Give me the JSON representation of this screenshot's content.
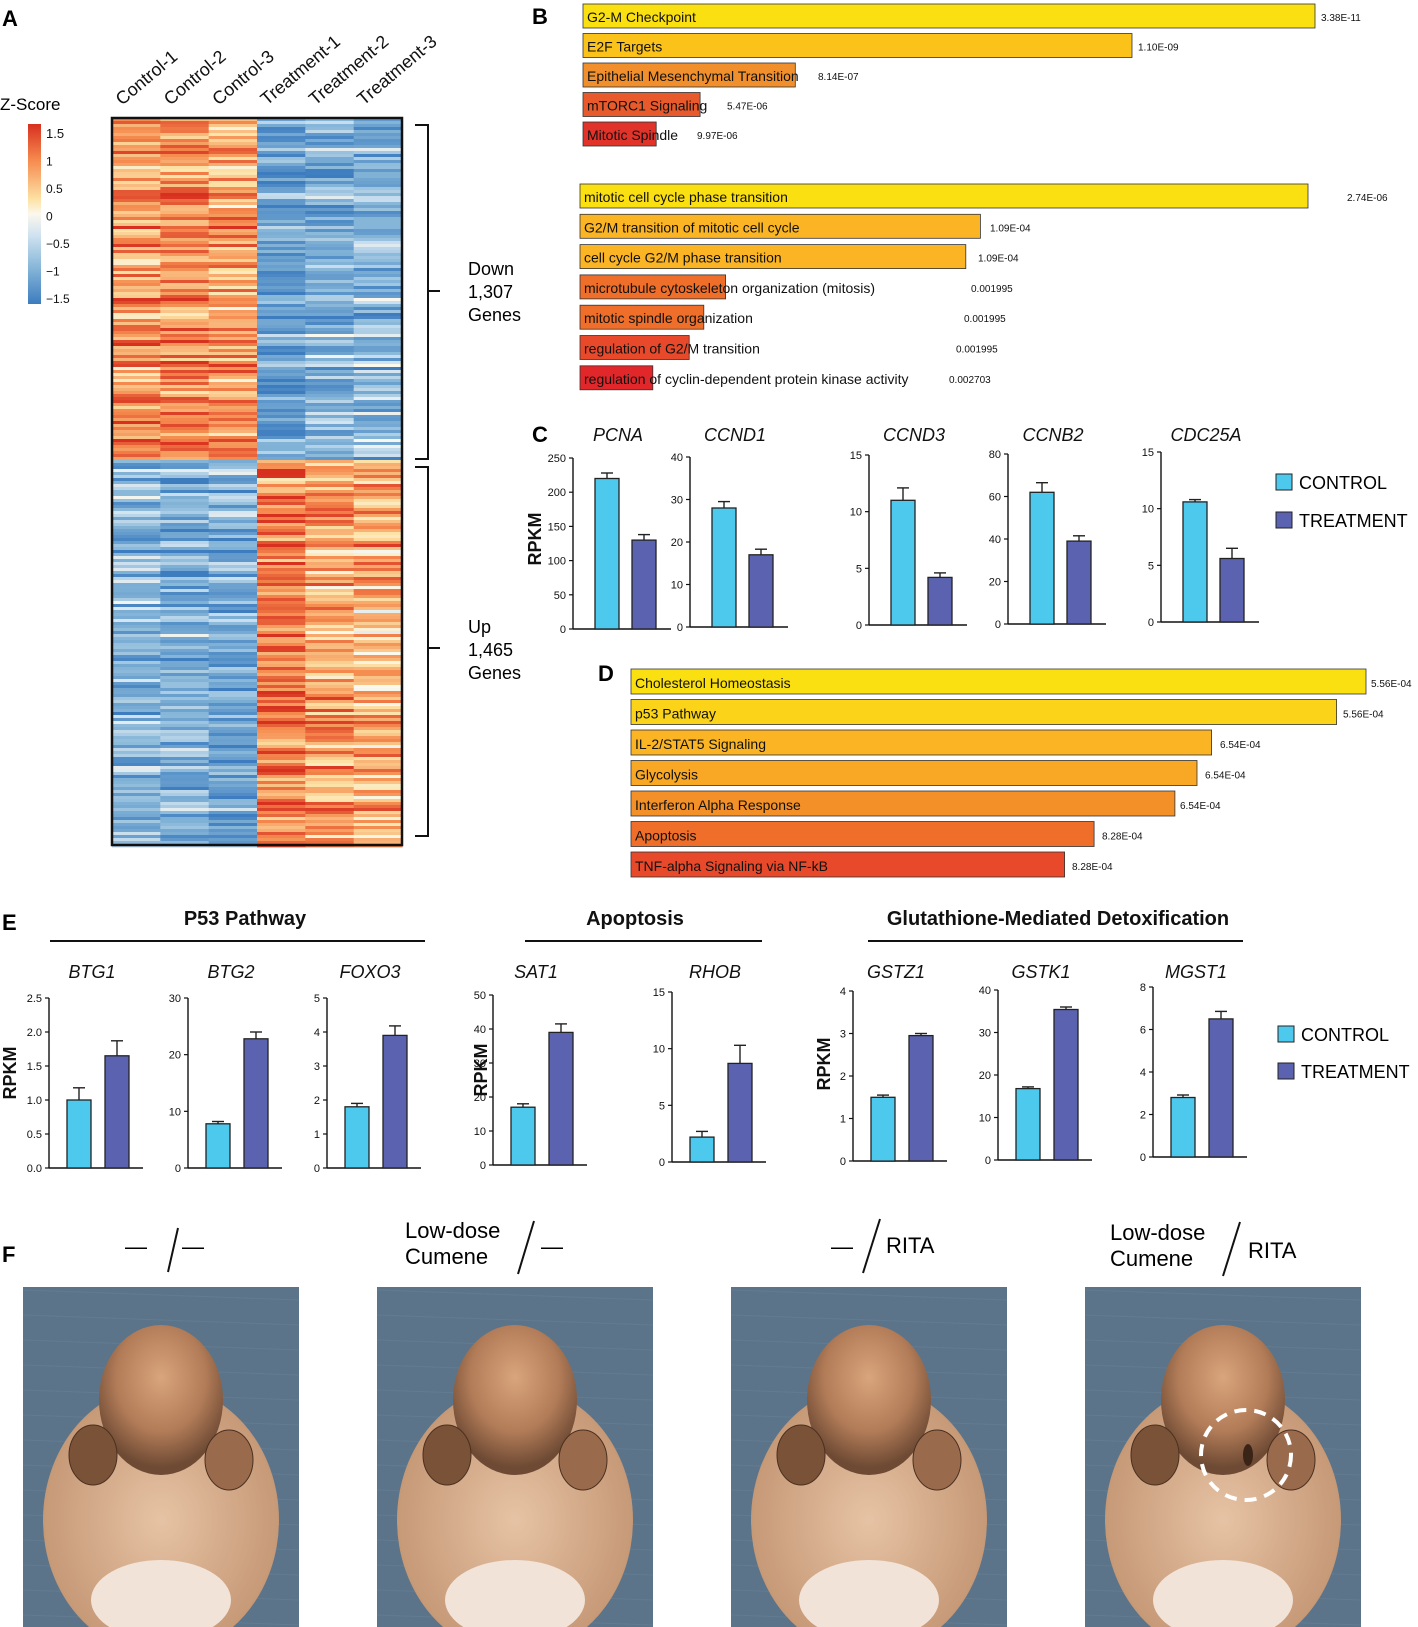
{
  "panel_labels": {
    "a": "A",
    "b": "B",
    "c": "C",
    "d": "D",
    "e": "E",
    "f": "F"
  },
  "colors": {
    "control": "#4dc9ee",
    "treatment": "#5b63b0",
    "bar_stroke": "#222222"
  },
  "heatmap": {
    "zscore_title": "Z-Score",
    "scale_ticks": [
      "1.5",
      "1",
      "0.5",
      "0",
      "−0.5",
      "−1",
      "−1.5"
    ],
    "columns": [
      "Control-1",
      "Control-2",
      "Control-3",
      "Treatment-1",
      "Treatment-2",
      "Treatment-3"
    ],
    "down": {
      "label": "Down",
      "count": "1,307",
      "genes": "Genes"
    },
    "up": {
      "label": "Up",
      "count": "1,465",
      "genes": "Genes"
    }
  },
  "chart_data": [
    {
      "id": "B1",
      "type": "bar",
      "orientation": "horizontal",
      "title": "",
      "categories": [
        "G2-M Checkpoint",
        "E2F Targets",
        "Epithelial Mesenchymal Transition",
        "mTORC1 Signaling",
        "Mitotic Spindle"
      ],
      "values": [
        100,
        75,
        29,
        16,
        10
      ],
      "labels": [
        "3.38E-11",
        "1.10E-09",
        "8.14E-07",
        "5.47E-06",
        "9.97E-06"
      ],
      "colors": [
        "#fbe011",
        "#fbc31a",
        "#f08f2c",
        "#e85a2b",
        "#e2332a"
      ]
    },
    {
      "id": "B2",
      "type": "bar",
      "orientation": "horizontal",
      "title": "",
      "categories": [
        "mitotic cell cycle phase transition",
        "G2/M transition of mitotic cell cycle",
        "cell cycle G2/M phase transition",
        "microtubule cytoskeleton organization (mitosis)",
        "mitotic spindle organization",
        "regulation of G2/M transition",
        "regulation of cyclin-dependent protein kinase activity"
      ],
      "values": [
        100,
        55,
        53,
        20,
        17,
        15,
        10
      ],
      "labels": [
        "2.74E-06",
        "1.09E-04",
        "1.09E-04",
        "0.001995",
        "0.001995",
        "0.001995",
        "0.002703"
      ],
      "colors": [
        "#fbe011",
        "#fbb524",
        "#fbb524",
        "#ee6e2a",
        "#ee6e2a",
        "#e8492a",
        "#e2272b"
      ]
    },
    {
      "id": "C",
      "type": "bar",
      "ylabel": "RPKM",
      "series_names": [
        "CONTROL",
        "TREATMENT"
      ],
      "genes": [
        {
          "title": "PCNA",
          "ylim": [
            0,
            250
          ],
          "ticks": [
            "0",
            "50",
            "100",
            "150",
            "200",
            "250"
          ],
          "values": [
            220,
            130
          ],
          "errors": [
            8,
            8
          ]
        },
        {
          "title": "CCND1",
          "ylim": [
            0,
            40
          ],
          "ticks": [
            "0",
            "10",
            "20",
            "30",
            "40"
          ],
          "values": [
            28,
            17
          ],
          "errors": [
            1.5,
            1.3
          ]
        },
        {
          "title": "CCND3",
          "ylim": [
            0,
            15
          ],
          "ticks": [
            "0",
            "5",
            "10",
            "15"
          ],
          "values": [
            11,
            4.2
          ],
          "errors": [
            1.1,
            0.4
          ]
        },
        {
          "title": "CCNB2",
          "ylim": [
            0,
            80
          ],
          "ticks": [
            "0",
            "20",
            "40",
            "60",
            "80"
          ],
          "values": [
            62,
            39
          ],
          "errors": [
            4.5,
            2.5
          ]
        },
        {
          "title": "CDC25A",
          "ylim": [
            0,
            15
          ],
          "ticks": [
            "0",
            "5",
            "10",
            "15"
          ],
          "values": [
            10.6,
            5.6
          ],
          "errors": [
            0.2,
            0.9
          ]
        }
      ]
    },
    {
      "id": "D",
      "type": "bar",
      "orientation": "horizontal",
      "title": "",
      "categories": [
        "Cholesterol Homeostasis",
        "p53 Pathway",
        "IL-2/STAT5 Signaling",
        "Glycolysis",
        "Interferon Alpha Response",
        "Apoptosis",
        "TNF-alpha Signaling via NF-kB"
      ],
      "values": [
        100,
        96,
        79,
        77,
        74,
        63,
        59
      ],
      "labels": [
        "5.56E-04",
        "5.56E-04",
        "6.54E-04",
        "6.54E-04",
        "6.54E-04",
        "8.28E-04",
        "8.28E-04"
      ],
      "colors": [
        "#fbe011",
        "#fbd419",
        "#fbb524",
        "#f9a826",
        "#f39028",
        "#ef6f2a",
        "#e8492a"
      ]
    },
    {
      "id": "E",
      "type": "bar",
      "ylabel": "RPKM",
      "series_names": [
        "CONTROL",
        "TREATMENT"
      ],
      "groups": [
        {
          "title": "P53 Pathway",
          "genes": [
            {
              "title": "BTG1",
              "ylim": [
                0,
                2.5
              ],
              "ticks": [
                "0.0",
                "0.5",
                "1.0",
                "1.5",
                "2.0",
                "2.5"
              ],
              "values": [
                1.0,
                1.65
              ],
              "errors": [
                0.18,
                0.22
              ]
            },
            {
              "title": "BTG2",
              "ylim": [
                0,
                30
              ],
              "ticks": [
                "0",
                "10",
                "20",
                "30"
              ],
              "values": [
                7.8,
                22.8
              ],
              "errors": [
                0.4,
                1.2
              ]
            },
            {
              "title": "FOXO3",
              "ylim": [
                0,
                5
              ],
              "ticks": [
                "0",
                "1",
                "2",
                "3",
                "4",
                "5"
              ],
              "values": [
                1.8,
                3.9
              ],
              "errors": [
                0.1,
                0.28
              ]
            }
          ]
        },
        {
          "title": "Apoptosis",
          "genes": [
            {
              "title": "SAT1",
              "ylim": [
                0,
                50
              ],
              "ticks": [
                "0",
                "10",
                "20",
                "30",
                "40",
                "50"
              ],
              "values": [
                17,
                39
              ],
              "errors": [
                1,
                2.5
              ]
            },
            {
              "title": "RHOB",
              "ylim": [
                0,
                15
              ],
              "ticks": [
                "0",
                "5",
                "10",
                "15"
              ],
              "values": [
                2.2,
                8.7
              ],
              "errors": [
                0.5,
                1.6
              ]
            }
          ]
        },
        {
          "title": "Glutathione-Mediated Detoxification",
          "genes": [
            {
              "title": "GSTZ1",
              "ylim": [
                0,
                4
              ],
              "ticks": [
                "0",
                "1",
                "2",
                "3",
                "4"
              ],
              "values": [
                1.5,
                2.95
              ],
              "errors": [
                0.05,
                0.05
              ]
            },
            {
              "title": "GSTK1",
              "ylim": [
                0,
                40
              ],
              "ticks": [
                "0",
                "10",
                "20",
                "30",
                "40"
              ],
              "values": [
                16.8,
                35.4
              ],
              "errors": [
                0.4,
                0.6
              ]
            },
            {
              "title": "MGST1",
              "ylim": [
                0,
                8
              ],
              "ticks": [
                "0",
                "2",
                "4",
                "6",
                "8"
              ],
              "values": [
                2.8,
                6.5
              ],
              "errors": [
                0.12,
                0.35
              ]
            }
          ]
        }
      ]
    }
  ],
  "photos": {
    "labels": [
      {
        "left": "—",
        "right": "—"
      },
      {
        "left_1": "Low-dose",
        "left_2": "Cumene",
        "right": "—"
      },
      {
        "left": "—",
        "right": "RITA"
      },
      {
        "left_1": "Low-dose",
        "left_2": "Cumene",
        "right": "RITA"
      }
    ]
  }
}
